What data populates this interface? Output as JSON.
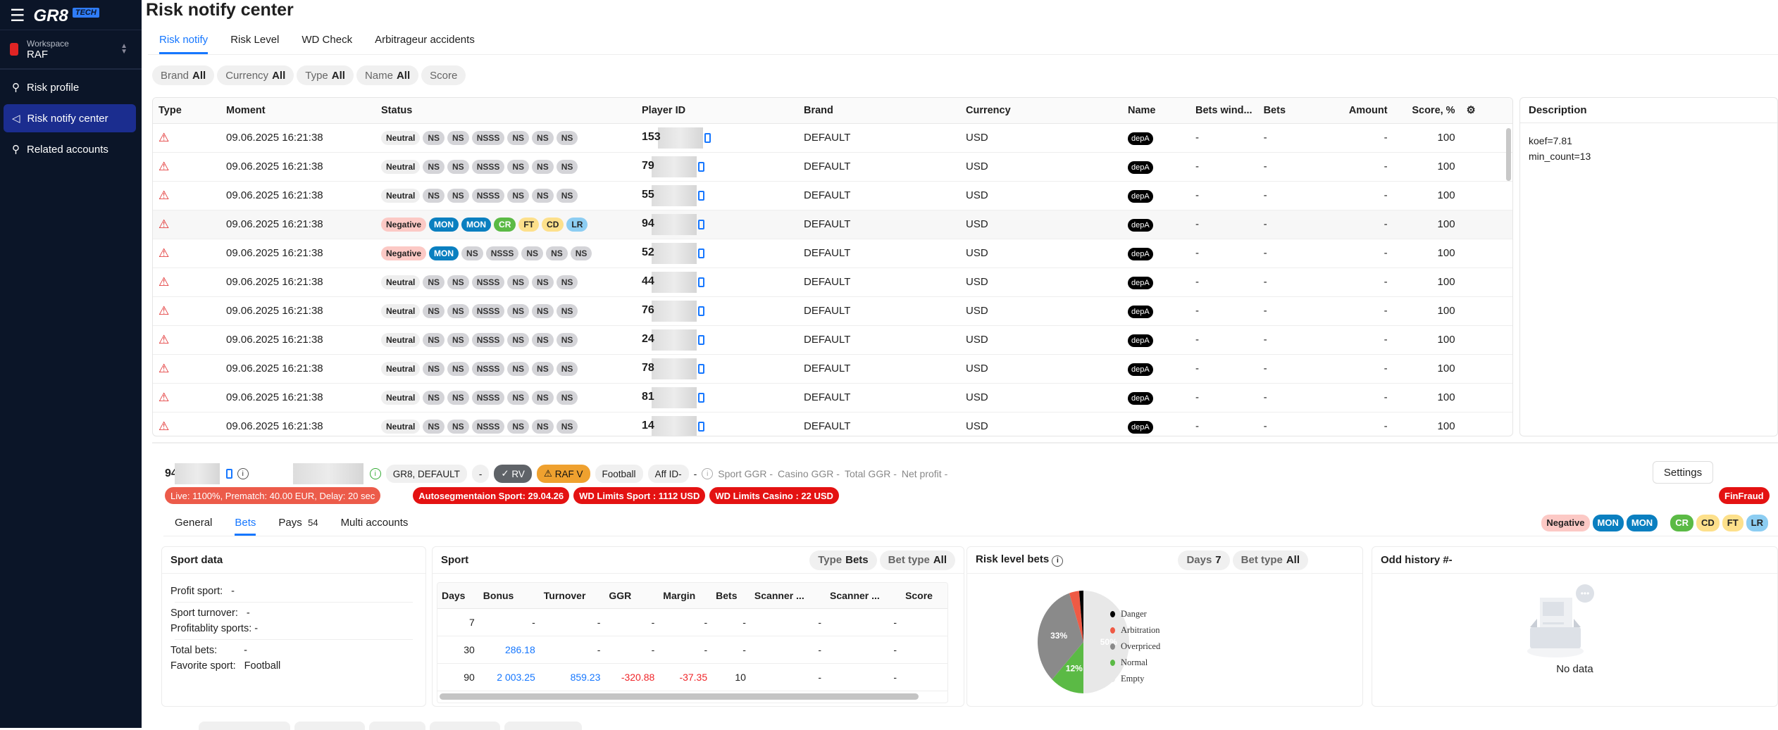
{
  "app": {
    "logo": "GR8",
    "logo_badge": "TECH",
    "workspace_label": "Workspace",
    "workspace": "RAF"
  },
  "sidebar": {
    "items": [
      {
        "label": "Risk profile",
        "icon": "user-icon"
      },
      {
        "label": "Risk notify center",
        "icon": "megaphone-icon",
        "active": true
      },
      {
        "label": "Related accounts",
        "icon": "users-icon"
      }
    ]
  },
  "page": {
    "title": "Risk notify center"
  },
  "tabs": [
    "Risk notify",
    "Risk Level",
    "WD Check",
    "Arbitrageur accidents"
  ],
  "filters": [
    {
      "label": "Brand",
      "value": "All"
    },
    {
      "label": "Currency",
      "value": "All"
    },
    {
      "label": "Type",
      "value": "All"
    },
    {
      "label": "Name",
      "value": "All"
    },
    {
      "label": "Score",
      "value": ""
    }
  ],
  "table": {
    "columns": [
      "Type",
      "Moment",
      "Status",
      "Player ID",
      "Brand",
      "Currency",
      "Name",
      "Bets wind...",
      "Bets",
      "Amount",
      "Score, %"
    ],
    "rows": [
      {
        "moment": "09.06.2025 16:21:38",
        "status": "neutral",
        "pid": "153",
        "brand": "DEFAULT",
        "currency": "USD",
        "name": "depA",
        "bets_window": "-",
        "bets": "-",
        "amount": "-",
        "score": "100"
      },
      {
        "moment": "09.06.2025 16:21:38",
        "status": "neutral",
        "pid": "79",
        "brand": "DEFAULT",
        "currency": "USD",
        "name": "depA",
        "bets_window": "-",
        "bets": "-",
        "amount": "-",
        "score": "100"
      },
      {
        "moment": "09.06.2025 16:21:38",
        "status": "neutral",
        "pid": "55",
        "brand": "DEFAULT",
        "currency": "USD",
        "name": "depA",
        "bets_window": "-",
        "bets": "-",
        "amount": "-",
        "score": "100"
      },
      {
        "moment": "09.06.2025 16:21:38",
        "status": "negative1",
        "pid": "94",
        "brand": "DEFAULT",
        "currency": "USD",
        "name": "depA",
        "bets_window": "-",
        "bets": "-",
        "amount": "-",
        "score": "100",
        "highlight": true
      },
      {
        "moment": "09.06.2025 16:21:38",
        "status": "negative2",
        "pid": "52",
        "brand": "DEFAULT",
        "currency": "USD",
        "name": "depA",
        "bets_window": "-",
        "bets": "-",
        "amount": "-",
        "score": "100"
      },
      {
        "moment": "09.06.2025 16:21:38",
        "status": "neutral",
        "pid": "44",
        "brand": "DEFAULT",
        "currency": "USD",
        "name": "depA",
        "bets_window": "-",
        "bets": "-",
        "amount": "-",
        "score": "100"
      },
      {
        "moment": "09.06.2025 16:21:38",
        "status": "neutral",
        "pid": "76",
        "brand": "DEFAULT",
        "currency": "USD",
        "name": "depA",
        "bets_window": "-",
        "bets": "-",
        "amount": "-",
        "score": "100"
      },
      {
        "moment": "09.06.2025 16:21:38",
        "status": "neutral",
        "pid": "24",
        "brand": "DEFAULT",
        "currency": "USD",
        "name": "depA",
        "bets_window": "-",
        "bets": "-",
        "amount": "-",
        "score": "100"
      },
      {
        "moment": "09.06.2025 16:21:38",
        "status": "neutral",
        "pid": "78",
        "brand": "DEFAULT",
        "currency": "USD",
        "name": "depA",
        "bets_window": "-",
        "bets": "-",
        "amount": "-",
        "score": "100"
      },
      {
        "moment": "09.06.2025 16:21:38",
        "status": "neutral",
        "pid": "81",
        "brand": "DEFAULT",
        "currency": "USD",
        "name": "depA",
        "bets_window": "-",
        "bets": "-",
        "amount": "-",
        "score": "100"
      },
      {
        "moment": "09.06.2025 16:21:38",
        "status": "neutral",
        "pid": "14",
        "brand": "DEFAULT",
        "currency": "USD",
        "name": "depA",
        "bets_window": "-",
        "bets": "-",
        "amount": "-",
        "score": "100"
      }
    ]
  },
  "status_sets": {
    "neutral": [
      [
        "Neutral",
        "neutral"
      ],
      [
        "NS",
        "ns"
      ],
      [
        "NS",
        "ns"
      ],
      [
        "NSSS",
        "ns"
      ],
      [
        "NS",
        "ns"
      ],
      [
        "NS",
        "ns"
      ],
      [
        "NS",
        "ns"
      ]
    ],
    "negative1": [
      [
        "Negative",
        "neg"
      ],
      [
        "MON",
        "mon"
      ],
      [
        "MON",
        "mon"
      ],
      [
        "CR",
        "cr"
      ],
      [
        "FT",
        "ft"
      ],
      [
        "CD",
        "cd"
      ],
      [
        "LR",
        "lr"
      ]
    ],
    "negative2": [
      [
        "Negative",
        "neg"
      ],
      [
        "MON",
        "mon"
      ],
      [
        "NS",
        "ns"
      ],
      [
        "NSSS",
        "ns"
      ],
      [
        "NS",
        "ns"
      ],
      [
        "NS",
        "ns"
      ],
      [
        "NS",
        "ns"
      ]
    ]
  },
  "description": {
    "title": "Description",
    "lines": [
      "koef=7.81",
      "min_count=13"
    ]
  },
  "player": {
    "id_prefix": "94",
    "brands": "GR8, DEFAULT",
    "dash": "-",
    "rv": "RV",
    "raf": "RAF V",
    "sport": "Football",
    "aff": "Aff ID-",
    "aff_val": "-",
    "sport_ggr": "Sport GGR -",
    "casino_ggr": "Casino GGR -",
    "total_ggr": "Total GGR -",
    "net_profit": "Net profit -",
    "settings": "Settings",
    "limits": "Live: 1100%, Prematch: 40.00 EUR, Delay: 20 sec",
    "red_tags": [
      "Autosegmentaion Sport: 29.04.26",
      "WD Limits Sport : 1112 USD",
      "WD Limits Casino : 22 USD"
    ],
    "finfraud": "FinFraud",
    "badges": [
      [
        "Negative",
        "neg"
      ],
      [
        "MON",
        "mon"
      ],
      [
        "MON",
        "mon"
      ],
      [
        "CR",
        "cr"
      ],
      [
        "CD",
        "cd"
      ],
      [
        "FT",
        "ft"
      ],
      [
        "LR",
        "lr"
      ]
    ]
  },
  "subtabs": [
    {
      "label": "General"
    },
    {
      "label": "Bets",
      "active": true
    },
    {
      "label": "Pays",
      "count": "54"
    },
    {
      "label": "Multi accounts"
    }
  ],
  "sport_data": {
    "title": "Sport data",
    "profit": [
      "Profit sport:",
      "-"
    ],
    "turnover": [
      "Sport turnover:",
      "-"
    ],
    "profitability": [
      "Profitablity sports:",
      "-"
    ],
    "total_bets": [
      "Total bets:",
      "-"
    ],
    "favorite": [
      "Favorite sport:",
      "Football"
    ]
  },
  "sport": {
    "title": "Sport",
    "filters": [
      {
        "label": "Type",
        "value": "Bets"
      },
      {
        "label": "Bet type",
        "value": "All"
      }
    ],
    "columns": [
      "Days",
      "Bonus",
      "Turnover",
      "GGR",
      "Margin",
      "Bets",
      "Scanner ...",
      "Scanner ...",
      "Score"
    ],
    "rows": [
      [
        "7",
        "-",
        "-",
        "-",
        "-",
        "-",
        "-",
        "-",
        ""
      ],
      [
        "30",
        "286.18",
        "-",
        "-",
        "-",
        "-",
        "-",
        "-",
        ""
      ],
      [
        "90",
        "2 003.25",
        "859.23",
        "-320.88",
        "-37.35",
        "10",
        "-",
        "-",
        ""
      ]
    ]
  },
  "risk_level": {
    "title": "Risk level bets",
    "filters": [
      {
        "label": "Days",
        "value": "7"
      },
      {
        "label": "Bet type",
        "value": "All"
      }
    ]
  },
  "chart_data": {
    "type": "pie",
    "slices": [
      {
        "name": "Empty",
        "value": 50,
        "color": "#e8e8e8",
        "label": "50%"
      },
      {
        "name": "Normal",
        "value": 12,
        "color": "#5bba45",
        "label": "12%"
      },
      {
        "name": "Overpriced",
        "value": 33,
        "color": "#8a8a8a",
        "label": "33%"
      },
      {
        "name": "Arbitration",
        "value": 3.5,
        "color": "#ef5a45",
        "label": ""
      },
      {
        "name": "Danger",
        "value": 1.5,
        "color": "#000000",
        "label": ""
      }
    ],
    "legend": [
      "Danger",
      "Arbitration",
      "Overpriced",
      "Normal",
      "Empty"
    ],
    "legend_colors": [
      "#000000",
      "#ef5a45",
      "#8a8a8a",
      "#5bba45",
      "#e8e8e8"
    ],
    "legend_position": "right"
  },
  "odd_history": {
    "title": "Odd history #-",
    "empty": "No data"
  }
}
